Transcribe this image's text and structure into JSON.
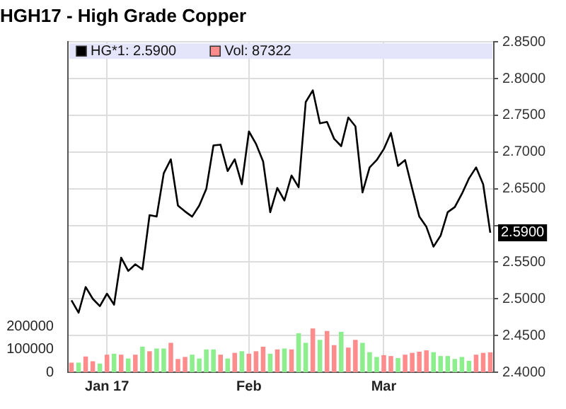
{
  "chart_data": {
    "type": "line",
    "title": "HGH17 - High Grade Copper",
    "categories": [
      null,
      null,
      null,
      null,
      null,
      "Jan 17",
      null,
      null,
      null,
      null,
      null,
      null,
      null,
      null,
      null,
      null,
      null,
      null,
      null,
      null,
      null,
      null,
      null,
      null,
      null,
      "Feb",
      null,
      null,
      null,
      null,
      null,
      null,
      null,
      null,
      null,
      null,
      null,
      null,
      null,
      null,
      null,
      null,
      null,
      null,
      "Mar",
      null,
      null,
      null,
      null,
      null,
      null,
      null,
      null,
      null,
      null,
      null,
      null,
      null,
      null,
      null
    ],
    "series": [
      {
        "name": "HG*1: 2.5900",
        "color": "#000000",
        "values": [
          2.498,
          2.481,
          2.516,
          2.5,
          2.49,
          2.507,
          2.492,
          2.556,
          2.538,
          2.547,
          2.54,
          2.614,
          2.612,
          2.671,
          2.69,
          2.627,
          2.619,
          2.612,
          2.627,
          2.65,
          2.709,
          2.71,
          2.674,
          2.69,
          2.656,
          2.728,
          2.711,
          2.687,
          2.618,
          2.651,
          2.634,
          2.668,
          2.652,
          2.768,
          2.784,
          2.739,
          2.741,
          2.718,
          2.708,
          2.747,
          2.735,
          2.645,
          2.679,
          2.689,
          2.704,
          2.726,
          2.681,
          2.689,
          2.65,
          2.612,
          2.598,
          2.571,
          2.586,
          2.618,
          2.625,
          2.643,
          2.664,
          2.679,
          2.656,
          2.59
        ]
      },
      {
        "name": "Vol: 87322",
        "type": "bar",
        "axis": "y2",
        "color": "#ff8c8c",
        "colors": [
          "#ff8c8c",
          "#8cee8c",
          "#ff8c8c",
          "#ff8c8c",
          "#8cee8c",
          "#ff8c8c",
          "#8cee8c",
          "#ff8c8c",
          "#8cee8c",
          "#ff8c8c",
          "#8cee8c",
          "#ff8c8c",
          "#8cee8c",
          "#8cee8c",
          "#ff8c8c",
          "#ff8c8c",
          "#ff8c8c",
          "#8cee8c",
          "#8cee8c",
          "#8cee8c",
          "#8cee8c",
          "#ff8c8c",
          "#8cee8c",
          "#ff8c8c",
          "#8cee8c",
          "#ff8c8c",
          "#ff8c8c",
          "#ff8c8c",
          "#8cee8c",
          "#ff8c8c",
          "#8cee8c",
          "#ff8c8c",
          "#8cee8c",
          "#8cee8c",
          "#ff8c8c",
          "#8cee8c",
          "#ff8c8c",
          "#ff8c8c",
          "#8cee8c",
          "#ff8c8c",
          "#ff8c8c",
          "#8cee8c",
          "#8cee8c",
          "#8cee8c",
          "#ff8c8c",
          "#ff8c8c",
          "#8cee8c",
          "#ff8c8c",
          "#ff8c8c",
          "#ff8c8c",
          "#ff8c8c",
          "#8cee8c",
          "#8cee8c",
          "#8cee8c",
          "#8cee8c",
          "#8cee8c",
          "#8cee8c",
          "#ff8c8c",
          "#ff8c8c",
          "#ff8c8c"
        ],
        "values": [
          42000,
          42000,
          69000,
          48000,
          38000,
          77000,
          81000,
          77000,
          60000,
          77000,
          112000,
          92000,
          104000,
          104000,
          129000,
          58000,
          67000,
          77000,
          60000,
          100000,
          100000,
          77000,
          60000,
          85000,
          92000,
          81000,
          92000,
          112000,
          81000,
          100000,
          104000,
          100000,
          171000,
          129000,
          192000,
          142000,
          181000,
          119000,
          177000,
          108000,
          142000,
          129000,
          88000,
          67000,
          75000,
          71000,
          62000,
          77000,
          85000,
          90000,
          96000,
          88000,
          71000,
          71000,
          58000,
          67000,
          50000,
          77000,
          85000,
          87322
        ]
      }
    ],
    "ylim": [
      2.4,
      2.85
    ],
    "yticks": [
      {
        "value": 2.4,
        "label": "2.4000"
      },
      {
        "value": 2.45,
        "label": "2.4500"
      },
      {
        "value": 2.5,
        "label": "2.5000"
      },
      {
        "value": 2.55,
        "label": "2.5500"
      },
      {
        "value": 2.6,
        "label": null
      },
      {
        "value": 2.65,
        "label": "2.6500"
      },
      {
        "value": 2.7,
        "label": "2.7000"
      },
      {
        "value": 2.75,
        "label": "2.7500"
      },
      {
        "value": 2.8,
        "label": "2.8000"
      },
      {
        "value": 2.85,
        "label": "2.8500"
      }
    ],
    "y2lim": [
      0,
      1450000
    ],
    "y2ticks": [
      0,
      100000,
      200000
    ],
    "grid": true,
    "legend": "top left",
    "marker": "none",
    "annotations": [
      "2.5900"
    ]
  }
}
